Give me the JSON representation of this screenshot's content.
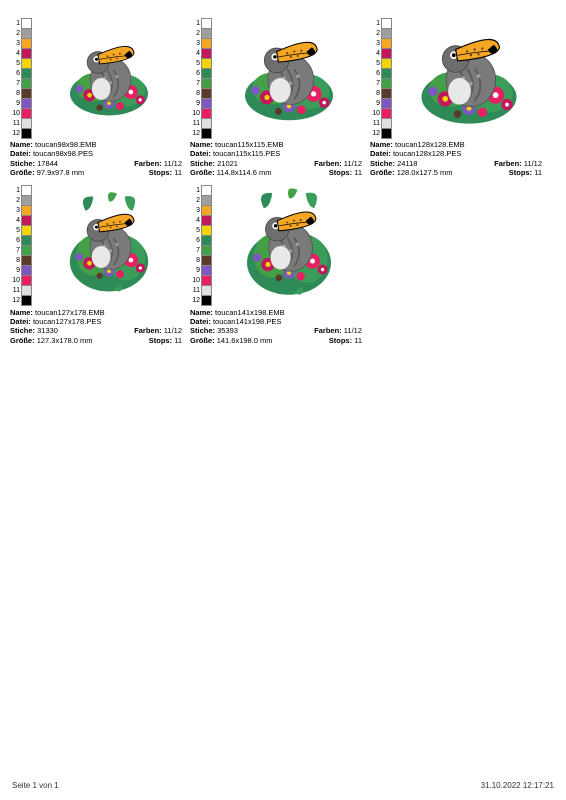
{
  "footer": {
    "page": "Seite 1 von 1",
    "timestamp": "31.10.2022 12:17:21"
  },
  "palette": {
    "colors": [
      "#ffffff",
      "#9e9e9e",
      "#f5a623",
      "#c2185b",
      "#f2d400",
      "#2e8b57",
      "#43a047",
      "#5b3a29",
      "#7e57c2",
      "#e91e63",
      "#e0e0e0",
      "#000000"
    ]
  },
  "designs": [
    {
      "name": "toucan98x98.EMB",
      "file": "toucan98x98.PES",
      "stitches": "17844",
      "colors": "11/12",
      "size": "97.9x97.8 mm",
      "stops": "11",
      "scale": 0.78,
      "variant": "square"
    },
    {
      "name": "toucan115x115.EMB",
      "file": "toucan115x115.PES",
      "stitches": "21021",
      "colors": "11/12",
      "size": "114.8x114.6 mm",
      "stops": "11",
      "scale": 0.88,
      "variant": "square"
    },
    {
      "name": "toucan128x128.EMB",
      "file": "toucan128x128.PES",
      "stitches": "24118",
      "colors": "11/12",
      "size": "128.0x127.5 mm",
      "stops": "11",
      "scale": 0.95,
      "variant": "square"
    },
    {
      "name": "toucan127x178.EMB",
      "file": "toucan127x178.PES",
      "stitches": "31330",
      "colors": "11/12",
      "size": "127.3x178.0 mm",
      "stops": "11",
      "scale": 0.98,
      "variant": "tall"
    },
    {
      "name": "toucan141x198.EMB",
      "file": "toucan141x198.PES",
      "stitches": "35393",
      "colors": "11/12",
      "size": "141.6x198.0 mm",
      "stops": "11",
      "scale": 1.05,
      "variant": "tall"
    }
  ],
  "labels": {
    "name": "Name:",
    "file": "Datei:",
    "stitches": "Stiche:",
    "colors": "Farben:",
    "size": "Größe:",
    "stops": "Stops:"
  }
}
